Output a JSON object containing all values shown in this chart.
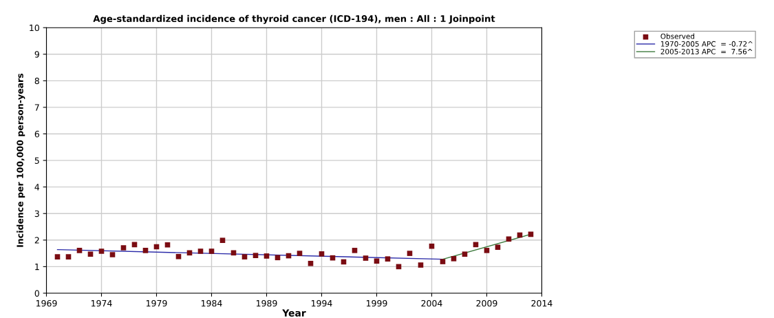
{
  "chart_data": {
    "type": "scatter",
    "title": "Age-standardized incidence of thyroid cancer (ICD-194), men : All : 1 Joinpoint",
    "xlabel": "Year",
    "ylabel": "Incidence per 100,000 person-years",
    "x": [
      1970,
      1971,
      1972,
      1973,
      1974,
      1975,
      1976,
      1977,
      1978,
      1979,
      1980,
      1981,
      1982,
      1983,
      1984,
      1985,
      1986,
      1987,
      1988,
      1989,
      1990,
      1991,
      1992,
      1993,
      1994,
      1995,
      1996,
      1997,
      1998,
      1999,
      2000,
      2001,
      2002,
      2003,
      2004,
      2005,
      2006,
      2007,
      2008,
      2009,
      2010,
      2011,
      2012,
      2013
    ],
    "series": [
      {
        "name": "Observed",
        "marker": "square",
        "color": "#7a0c12",
        "values": [
          1.37,
          1.37,
          1.61,
          1.47,
          1.58,
          1.45,
          1.71,
          1.83,
          1.61,
          1.75,
          1.82,
          1.38,
          1.52,
          1.58,
          1.58,
          1.99,
          1.52,
          1.37,
          1.42,
          1.4,
          1.34,
          1.41,
          1.5,
          1.12,
          1.48,
          1.33,
          1.18,
          1.61,
          1.32,
          1.21,
          1.29,
          1.0,
          1.5,
          1.06,
          1.77,
          1.19,
          1.3,
          1.47,
          1.83,
          1.61,
          1.73,
          2.04,
          2.19,
          2.22
        ]
      },
      {
        "name": "1970-2005 APC  = -0.72^",
        "type": "line",
        "marker": "none",
        "color": "#2a2aa8",
        "x": [
          1970,
          2005
        ],
        "values": [
          1.64,
          1.28
        ]
      },
      {
        "name": "2005-2013 APC  =  7.56^",
        "type": "line",
        "marker": "none",
        "color": "#3d7a3d",
        "x": [
          2005,
          2013
        ],
        "values": [
          1.28,
          2.22
        ]
      }
    ],
    "xlim": [
      1969,
      2014
    ],
    "xticks": [
      1969,
      1974,
      1979,
      1984,
      1989,
      1994,
      1999,
      2004,
      2009,
      2014
    ],
    "ylim": [
      0,
      10
    ],
    "yticks": [
      0,
      1,
      2,
      3,
      4,
      5,
      6,
      7,
      8,
      9,
      10
    ],
    "grid": true,
    "legend": "top right"
  }
}
